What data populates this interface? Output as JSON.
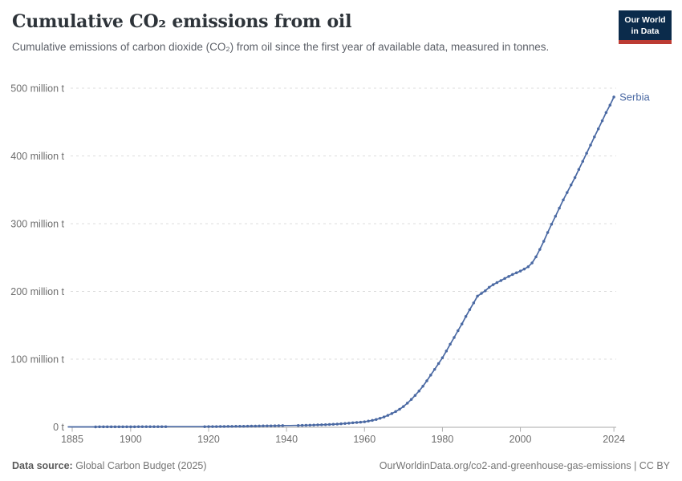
{
  "header": {
    "title": "Cumulative CO₂ emissions from oil",
    "subtitle": "Cumulative emissions of carbon dioxide (CO₂) from oil since the first year of available data, measured in tonnes.",
    "logo": {
      "line1": "Our World",
      "line2": "in Data"
    }
  },
  "footer": {
    "source_label": "Data source:",
    "source_value": "Global Carbon Budget (2025)",
    "attribution": "OurWorldinData.org/co2-and-greenhouse-gas-emissions | CC BY"
  },
  "colors": {
    "line": "#4A69A3",
    "entity_label": "#4A69A3",
    "grid": "#dcdcdc",
    "axis": "#a9a9a9",
    "tick": "#b0b0b0",
    "tick_text": "#6e6e6e",
    "title_text": "#2d3339",
    "logo_bg": "#0b2b4b",
    "logo_accent": "#bc3b33"
  },
  "chart_data": {
    "type": "line",
    "title": "Cumulative CO₂ emissions from oil",
    "unit": "tonnes",
    "entity": "Serbia",
    "grid": "dashed-horizontal",
    "legend_position": "end-of-line",
    "xlim": [
      1884,
      2025
    ],
    "ylim": [
      0,
      500
    ],
    "x_ticks": [
      1885,
      1900,
      1920,
      1940,
      1960,
      1980,
      2000,
      2024
    ],
    "y_ticks": [
      {
        "value": 0,
        "label": "0 t"
      },
      {
        "value": 100,
        "label": "100 million t"
      },
      {
        "value": 200,
        "label": "200 million t"
      },
      {
        "value": 300,
        "label": "300 million t"
      },
      {
        "value": 400,
        "label": "400 million t"
      },
      {
        "value": 500,
        "label": "500 million t"
      }
    ],
    "start_year": 1884,
    "end_year": 2024,
    "marker_gap_year_ranges": [
      [
        1884,
        1890
      ],
      [
        1910,
        1918
      ],
      [
        1940,
        1942
      ]
    ],
    "series": [
      {
        "name": "Serbia",
        "values_unit": "million t",
        "values": [
          0.01,
          0.02,
          0.02,
          0.03,
          0.03,
          0.04,
          0.05,
          0.05,
          0.06,
          0.07,
          0.08,
          0.09,
          0.1,
          0.11,
          0.12,
          0.13,
          0.15,
          0.17,
          0.19,
          0.21,
          0.23,
          0.25,
          0.27,
          0.29,
          0.31,
          0.33,
          0.33,
          0.34,
          0.34,
          0.34,
          0.34,
          0.35,
          0.35,
          0.35,
          0.35,
          0.38,
          0.42,
          0.46,
          0.51,
          0.56,
          0.62,
          0.68,
          0.75,
          0.82,
          0.9,
          0.98,
          1.06,
          1.14,
          1.22,
          1.31,
          1.4,
          1.49,
          1.59,
          1.69,
          1.8,
          1.91,
          2.02,
          2.05,
          2.08,
          2.11,
          2.2,
          2.35,
          2.5,
          2.7,
          2.9,
          3.1,
          3.3,
          3.6,
          3.9,
          4.2,
          4.6,
          5.0,
          5.5,
          6.0,
          6.5,
          7.0,
          7.6,
          8.5,
          9.6,
          11,
          12.7,
          14.7,
          17,
          19.6,
          22.6,
          26,
          30,
          35,
          40.5,
          46.5,
          53,
          60,
          68,
          76.5,
          85,
          93.5,
          102,
          112,
          122,
          132,
          142,
          152,
          163,
          173,
          183,
          193,
          197,
          201,
          206,
          210,
          213,
          216,
          219,
          222,
          225,
          227.5,
          230,
          233,
          236.5,
          242,
          251,
          262,
          274,
          287,
          299,
          311,
          323,
          335,
          346,
          357,
          368,
          380,
          392,
          404,
          416,
          428,
          440,
          452,
          464,
          475,
          487
        ]
      }
    ]
  }
}
